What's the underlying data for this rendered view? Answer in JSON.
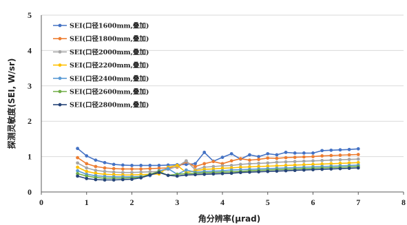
{
  "chart_data": {
    "type": "line",
    "xlabel": "角分辨率(μrad)",
    "ylabel": "探测灵敏度(SEI, W/sr)",
    "xlim": [
      0,
      8
    ],
    "ylim": [
      0,
      5
    ],
    "x_ticks": [
      "0",
      "1",
      "2",
      "3",
      "4",
      "5",
      "6",
      "7",
      "8"
    ],
    "y_ticks": [
      "0",
      "1",
      "2",
      "3",
      "4",
      "5"
    ],
    "grid": "horizontal",
    "legend_position": "top-left",
    "x": [
      0.8,
      1.0,
      1.2,
      1.4,
      1.6,
      1.8,
      2.0,
      2.2,
      2.4,
      2.6,
      2.8,
      3.0,
      3.2,
      3.4,
      3.6,
      3.8,
      4.0,
      4.2,
      4.4,
      4.6,
      4.8,
      5.0,
      5.2,
      5.4,
      5.6,
      5.8,
      6.0,
      6.2,
      6.4,
      6.6,
      6.8,
      7.0
    ],
    "series": [
      {
        "name": "SEI(口径1600mm,叠加)",
        "color": "#4472C4",
        "values": [
          1.23,
          1.02,
          0.9,
          0.83,
          0.78,
          0.76,
          0.75,
          0.75,
          0.75,
          0.75,
          0.76,
          0.77,
          0.78,
          0.8,
          1.12,
          0.87,
          0.98,
          1.08,
          0.93,
          1.05,
          1.0,
          1.08,
          1.05,
          1.12,
          1.1,
          1.1,
          1.1,
          1.17,
          1.18,
          1.19,
          1.2,
          1.22
        ]
      },
      {
        "name": "SEI(口径1800mm,叠加)",
        "color": "#ED7D31",
        "values": [
          0.97,
          0.8,
          0.72,
          0.68,
          0.66,
          0.65,
          0.65,
          0.65,
          0.66,
          0.67,
          0.68,
          0.7,
          0.85,
          0.72,
          0.8,
          0.86,
          0.8,
          0.88,
          0.94,
          0.9,
          0.92,
          0.96,
          0.95,
          0.97,
          0.98,
          0.99,
          1.0,
          1.02,
          1.03,
          1.04,
          1.05,
          1.06
        ]
      },
      {
        "name": "SEI(口径2000mm,叠加)",
        "color": "#A5A5A5",
        "values": [
          0.82,
          0.68,
          0.61,
          0.58,
          0.56,
          0.55,
          0.55,
          0.56,
          0.57,
          0.58,
          0.64,
          0.72,
          0.88,
          0.63,
          0.7,
          0.72,
          0.74,
          0.75,
          0.78,
          0.8,
          0.81,
          0.82,
          0.84,
          0.85,
          0.86,
          0.87,
          0.88,
          0.89,
          0.9,
          0.91,
          0.92,
          0.93
        ]
      },
      {
        "name": "SEI(口径2200mm,叠加)",
        "color": "#FFC000",
        "values": [
          0.7,
          0.58,
          0.53,
          0.5,
          0.49,
          0.48,
          0.48,
          0.49,
          0.5,
          0.51,
          0.7,
          0.75,
          0.55,
          0.6,
          0.64,
          0.65,
          0.67,
          0.68,
          0.7,
          0.71,
          0.72,
          0.73,
          0.74,
          0.75,
          0.76,
          0.77,
          0.78,
          0.79,
          0.8,
          0.81,
          0.82,
          0.83
        ]
      },
      {
        "name": "SEI(口径2400mm,叠加)",
        "color": "#5B9BD5",
        "values": [
          0.6,
          0.5,
          0.46,
          0.44,
          0.43,
          0.43,
          0.43,
          0.44,
          0.46,
          0.6,
          0.66,
          0.5,
          0.62,
          0.56,
          0.58,
          0.59,
          0.6,
          0.62,
          0.63,
          0.64,
          0.65,
          0.66,
          0.67,
          0.68,
          0.69,
          0.7,
          0.71,
          0.72,
          0.73,
          0.74,
          0.75,
          0.76
        ]
      },
      {
        "name": "SEI(口径2600mm,叠加)",
        "color": "#70AD47",
        "values": [
          0.52,
          0.45,
          0.41,
          0.39,
          0.39,
          0.39,
          0.4,
          0.42,
          0.5,
          0.58,
          0.47,
          0.5,
          0.52,
          0.53,
          0.54,
          0.55,
          0.56,
          0.57,
          0.58,
          0.6,
          0.61,
          0.62,
          0.63,
          0.64,
          0.65,
          0.66,
          0.67,
          0.68,
          0.69,
          0.7,
          0.71,
          0.72
        ]
      },
      {
        "name": "SEI(口径2800mm,叠加)",
        "color": "#264478",
        "values": [
          0.45,
          0.38,
          0.35,
          0.34,
          0.34,
          0.35,
          0.36,
          0.4,
          0.48,
          0.55,
          0.47,
          0.45,
          0.48,
          0.49,
          0.5,
          0.51,
          0.52,
          0.53,
          0.55,
          0.56,
          0.57,
          0.58,
          0.59,
          0.6,
          0.61,
          0.62,
          0.63,
          0.64,
          0.65,
          0.66,
          0.67,
          0.68
        ]
      }
    ]
  }
}
